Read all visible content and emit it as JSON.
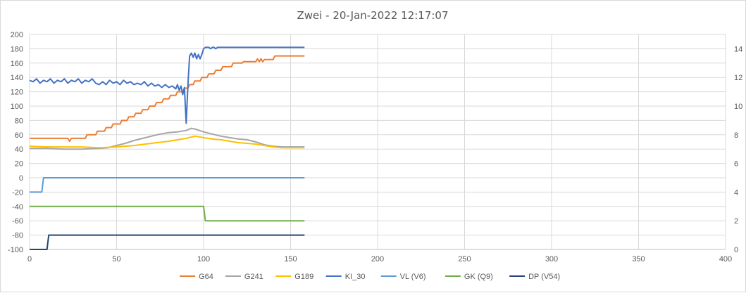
{
  "chart_data": {
    "type": "line",
    "title": "Zwei - 20-Jan-2022 12:17:07",
    "xlim": [
      0,
      400
    ],
    "x_ticks": [
      0,
      50,
      100,
      150,
      200,
      250,
      300,
      350,
      400
    ],
    "ylim": [
      -100,
      200
    ],
    "y_ticks": [
      -100,
      -80,
      -60,
      -40,
      -20,
      0,
      20,
      40,
      60,
      80,
      100,
      120,
      140,
      160,
      180,
      200
    ],
    "y2lim": [
      0,
      15
    ],
    "y2_ticks": [
      0,
      2,
      4,
      6,
      8,
      10,
      12,
      14
    ],
    "grid": true,
    "legend_position": "bottom",
    "series": [
      {
        "name": "G64",
        "color": "#ED7D31",
        "x": [
          0,
          22,
          23,
          24,
          32,
          33,
          38,
          39,
          43,
          44,
          47,
          48,
          52,
          53,
          56,
          57,
          60,
          61,
          64,
          65,
          68,
          69,
          72,
          73,
          76,
          77,
          80,
          81,
          84,
          85,
          88,
          89,
          91,
          92,
          94,
          95,
          98,
          99,
          102,
          103,
          106,
          107,
          110,
          111,
          116,
          117,
          122,
          123,
          130,
          131,
          132,
          133,
          134,
          135,
          140,
          141,
          158
        ],
        "y": [
          55,
          55,
          51,
          55,
          55,
          60,
          60,
          65,
          65,
          70,
          70,
          75,
          75,
          80,
          80,
          85,
          85,
          90,
          90,
          95,
          95,
          100,
          100,
          105,
          105,
          110,
          110,
          115,
          115,
          120,
          120,
          125,
          125,
          130,
          130,
          135,
          135,
          140,
          140,
          145,
          145,
          150,
          150,
          155,
          155,
          160,
          160,
          162,
          162,
          166,
          162,
          166,
          162,
          165,
          165,
          170,
          170
        ]
      },
      {
        "name": "G241",
        "color": "#A5A5A5",
        "x": [
          0,
          10,
          20,
          30,
          40,
          45,
          50,
          55,
          60,
          65,
          70,
          75,
          80,
          85,
          90,
          93,
          95,
          100,
          105,
          110,
          115,
          120,
          125,
          130,
          135,
          140,
          145,
          150,
          158
        ],
        "y": [
          41,
          41,
          40,
          40,
          41,
          42,
          45,
          48,
          52,
          55,
          58,
          61,
          63,
          64,
          66,
          69,
          68,
          64,
          61,
          58,
          56,
          54,
          53,
          50,
          46,
          44,
          43,
          43,
          43
        ]
      },
      {
        "name": "G189",
        "color": "#FFC000",
        "x": [
          0,
          10,
          20,
          30,
          40,
          50,
          60,
          70,
          80,
          90,
          95,
          100,
          105,
          110,
          115,
          120,
          125,
          130,
          135,
          140,
          145,
          150,
          158
        ],
        "y": [
          44,
          43,
          43,
          43,
          42,
          43,
          45,
          48,
          51,
          55,
          58,
          56,
          54,
          53,
          51,
          49,
          48,
          47,
          45,
          43,
          42,
          42,
          42
        ]
      },
      {
        "name": "KI_30",
        "color": "#4472C4",
        "axis": "secondary",
        "x": [
          0,
          2,
          4,
          6,
          8,
          10,
          12,
          14,
          16,
          18,
          20,
          22,
          24,
          26,
          28,
          30,
          32,
          34,
          36,
          38,
          40,
          42,
          44,
          46,
          48,
          50,
          52,
          54,
          56,
          58,
          60,
          62,
          64,
          66,
          68,
          70,
          72,
          74,
          76,
          78,
          80,
          82,
          84,
          85,
          86,
          87,
          88,
          89,
          90,
          91,
          92,
          93,
          94,
          95,
          96,
          97,
          98,
          99,
          100,
          101,
          102,
          103,
          104,
          105,
          106,
          107,
          108,
          158
        ],
        "y": [
          11.8,
          11.7,
          11.9,
          11.6,
          11.8,
          11.7,
          11.9,
          11.6,
          11.8,
          11.7,
          11.9,
          11.6,
          11.8,
          11.7,
          11.9,
          11.6,
          11.8,
          11.7,
          11.9,
          11.6,
          11.5,
          11.7,
          11.5,
          11.8,
          11.6,
          11.7,
          11.5,
          11.8,
          11.6,
          11.7,
          11.5,
          11.6,
          11.5,
          11.7,
          11.4,
          11.6,
          11.4,
          11.5,
          11.3,
          11.5,
          11.3,
          11.4,
          11.2,
          11.5,
          11.1,
          11.4,
          10.8,
          11.3,
          8.8,
          11.5,
          13.5,
          13.7,
          13.4,
          13.7,
          13.3,
          13.6,
          13.3,
          13.6,
          14.0,
          14.1,
          14.1,
          14.1,
          14.0,
          14.1,
          14.1,
          14.0,
          14.1,
          14.1
        ]
      },
      {
        "name": "VL (V6)",
        "color": "#5B9BD5",
        "axis": "secondary",
        "x": [
          0,
          7,
          8,
          158
        ],
        "y": [
          4,
          4,
          5,
          5
        ]
      },
      {
        "name": "GK (Q9)",
        "color": "#70AD47",
        "axis": "secondary",
        "x": [
          0,
          100,
          101,
          158
        ],
        "y": [
          3,
          3,
          2,
          2
        ]
      },
      {
        "name": "DP (V54)",
        "color": "#264478",
        "axis": "secondary",
        "x": [
          0,
          10,
          11,
          158
        ],
        "y": [
          0,
          0,
          1,
          1
        ]
      }
    ]
  }
}
